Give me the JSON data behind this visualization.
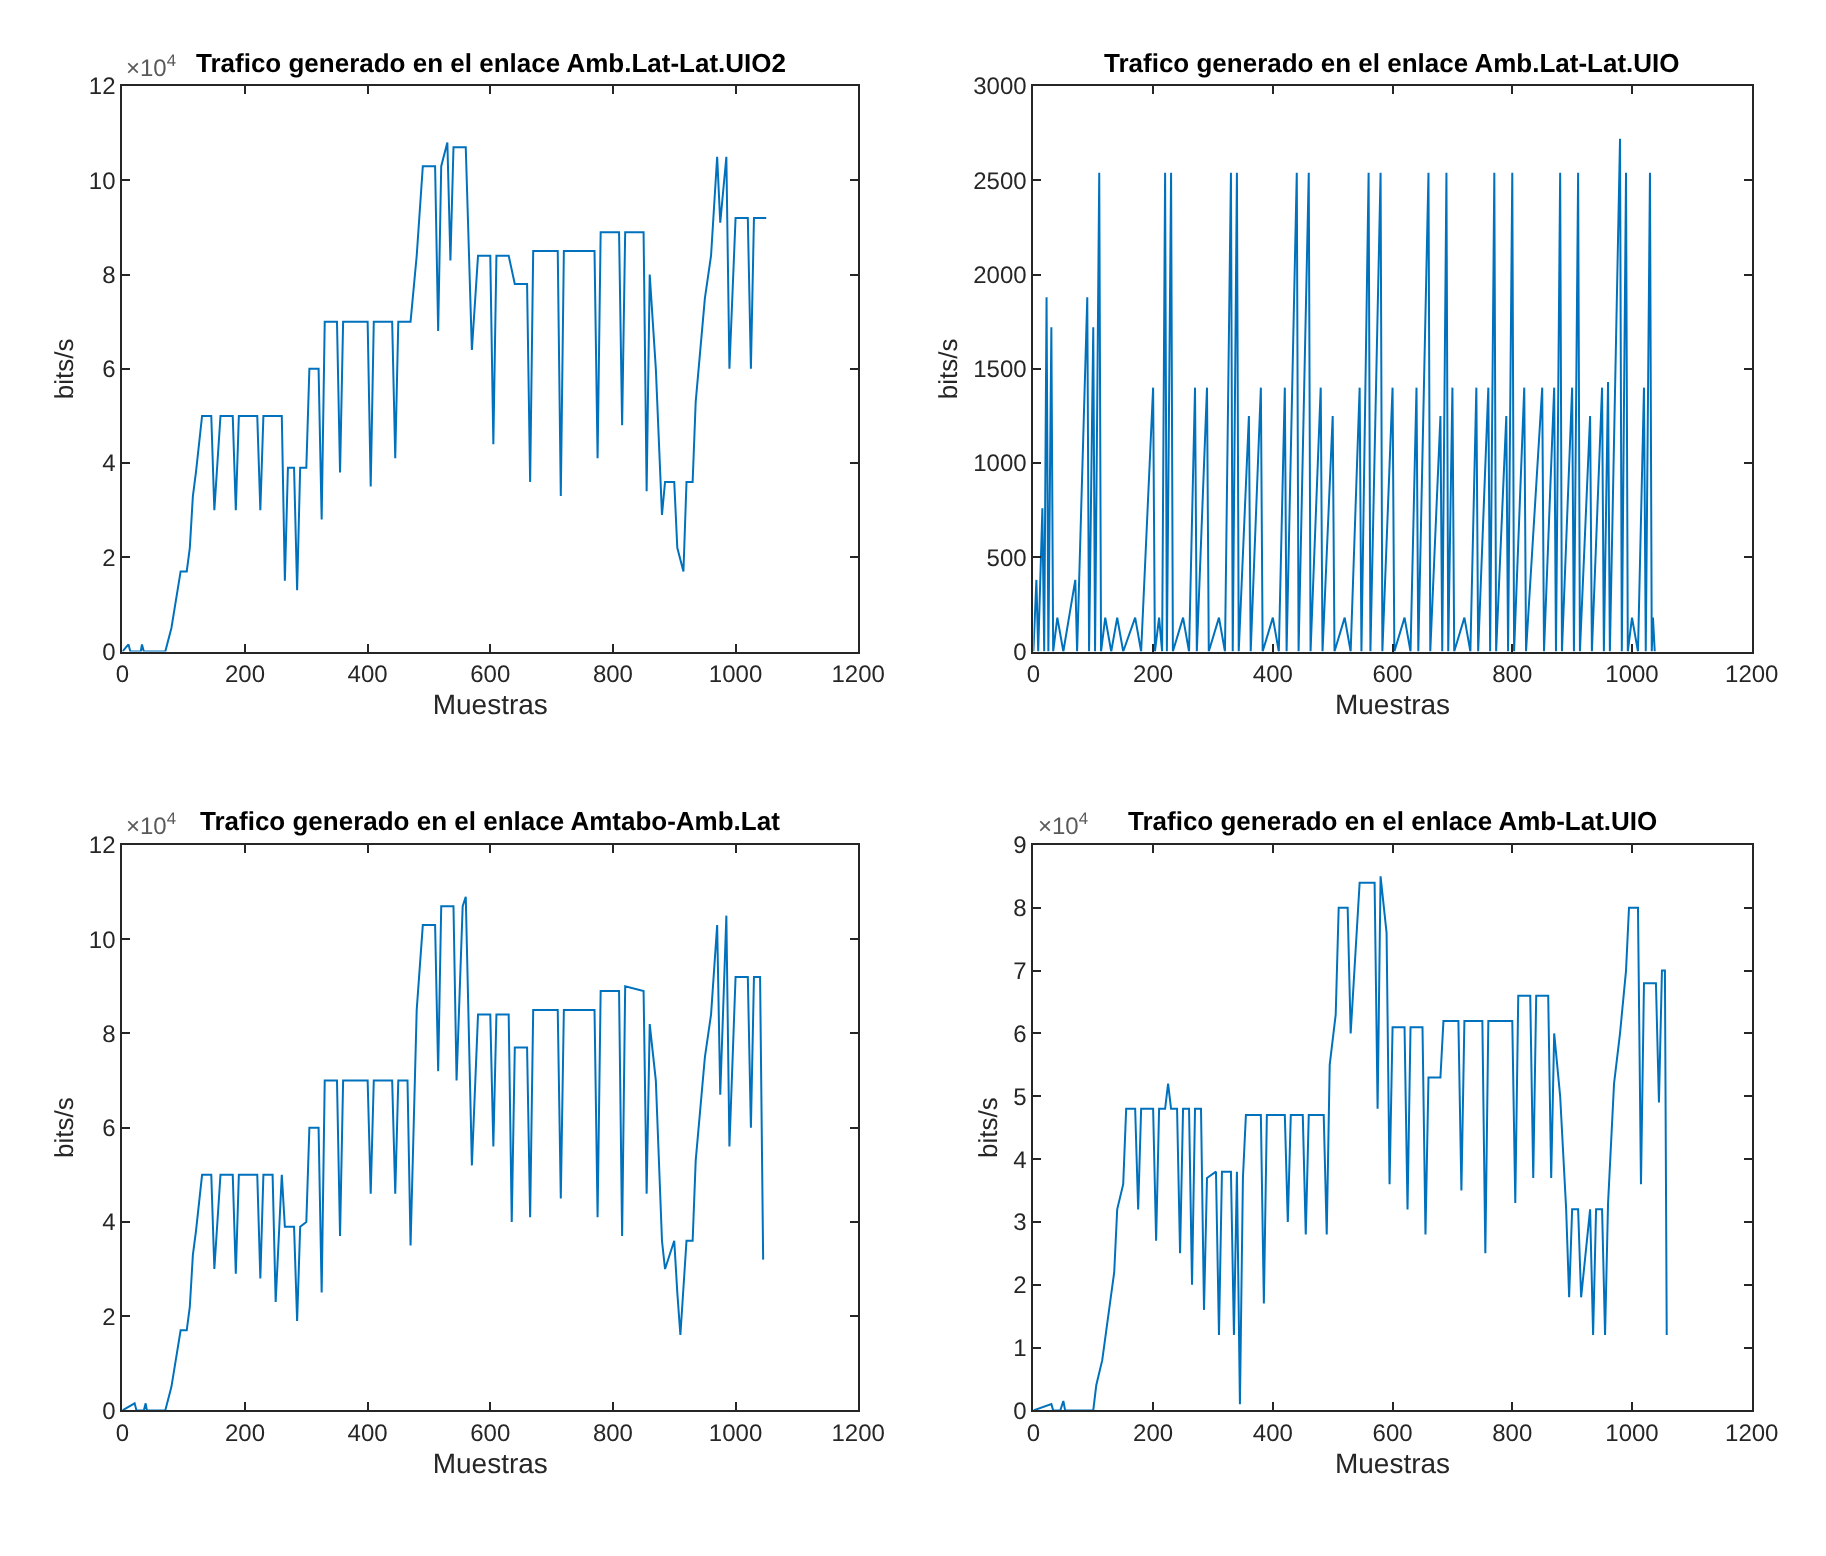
{
  "chart_data": [
    {
      "type": "line",
      "title": "Trafico generado en el enlace Amb.Lat-Lat.UIO2",
      "xlabel": "Muestras",
      "ylabel": "bits/s",
      "annotations": [
        "×10$^{4}$"
      ],
      "xlim": [
        0,
        1200
      ],
      "xticks": [
        0,
        200,
        400,
        600,
        800,
        1000,
        1200
      ],
      "ylim": [
        0,
        12
      ],
      "yticks": [
        0,
        2,
        4,
        6,
        8,
        10,
        12
      ],
      "series": [
        {
          "color": "#0072bd",
          "x": [
            0,
            10,
            13,
            30,
            32,
            35,
            70,
            80,
            95,
            105,
            110,
            115,
            120,
            130,
            145,
            150,
            160,
            180,
            185,
            190,
            220,
            225,
            230,
            260,
            265,
            270,
            280,
            285,
            290,
            300,
            305,
            320,
            325,
            330,
            350,
            355,
            360,
            400,
            405,
            410,
            440,
            445,
            450,
            470,
            480,
            490,
            510,
            515,
            520,
            530,
            535,
            540,
            560,
            570,
            580,
            600,
            605,
            610,
            630,
            640,
            660,
            665,
            670,
            710,
            715,
            720,
            770,
            775,
            780,
            810,
            815,
            820,
            850,
            855,
            860,
            870,
            880,
            885,
            900,
            905,
            915,
            920,
            930,
            935,
            950,
            960,
            970,
            975,
            985,
            990,
            1000,
            1020,
            1025,
            1030,
            1050
          ],
          "values": [
            0,
            0.15,
            0,
            0,
            0.15,
            0,
            0,
            0.5,
            1.7,
            1.7,
            2.2,
            3.3,
            3.8,
            5,
            5,
            3,
            5,
            5,
            3,
            5,
            5,
            3,
            5,
            5,
            1.5,
            3.9,
            3.9,
            1.3,
            3.9,
            3.9,
            6,
            6,
            2.8,
            7,
            7,
            3.8,
            7,
            7,
            3.5,
            7,
            7,
            4.1,
            7,
            7,
            8.4,
            10.3,
            10.3,
            6.8,
            10.3,
            10.8,
            8.3,
            10.7,
            10.7,
            6.4,
            8.4,
            8.4,
            4.4,
            8.4,
            8.4,
            7.8,
            7.8,
            3.6,
            8.5,
            8.5,
            3.3,
            8.5,
            8.5,
            4.1,
            8.9,
            8.9,
            4.8,
            8.9,
            8.9,
            3.4,
            8,
            6,
            2.9,
            3.6,
            3.6,
            2.2,
            1.7,
            3.6,
            3.6,
            5.3,
            7.5,
            8.4,
            10.5,
            9.1,
            10.5,
            6,
            9.2,
            9.2,
            6,
            9.2,
            9.2
          ]
        }
      ]
    },
    {
      "type": "line",
      "title": "Trafico generado en el enlace Amb.Lat-Lat.UIO",
      "xlabel": "Muestras",
      "ylabel": "bits/s",
      "xlim": [
        0,
        1200
      ],
      "xticks": [
        0,
        200,
        400,
        600,
        800,
        1000,
        1200
      ],
      "ylim": [
        0,
        3000
      ],
      "yticks": [
        0,
        500,
        1000,
        1500,
        2000,
        2500,
        3000
      ],
      "series": [
        {
          "color": "#0072bd",
          "x": [
            0,
            5,
            8,
            15,
            18,
            22,
            25,
            30,
            33,
            40,
            50,
            70,
            73,
            90,
            93,
            100,
            103,
            110,
            113,
            120,
            130,
            140,
            150,
            170,
            180,
            200,
            203,
            210,
            215,
            220,
            223,
            230,
            233,
            250,
            260,
            270,
            273,
            290,
            293,
            310,
            320,
            330,
            333,
            340,
            343,
            360,
            363,
            380,
            383,
            400,
            410,
            420,
            423,
            440,
            443,
            460,
            463,
            480,
            483,
            500,
            503,
            520,
            530,
            545,
            548,
            560,
            563,
            580,
            583,
            600,
            603,
            620,
            630,
            640,
            643,
            660,
            663,
            680,
            683,
            690,
            693,
            700,
            703,
            720,
            730,
            740,
            743,
            760,
            763,
            770,
            773,
            790,
            793,
            800,
            803,
            820,
            823,
            850,
            853,
            870,
            873,
            880,
            883,
            900,
            903,
            910,
            913,
            930,
            933,
            950,
            953,
            960,
            963,
            980,
            983,
            990,
            993,
            1000,
            1010,
            1020,
            1023,
            1030,
            1033,
            1035,
            1038
          ],
          "values": [
            0,
            380,
            0,
            760,
            0,
            1880,
            0,
            1720,
            0,
            180,
            0,
            380,
            0,
            1880,
            0,
            1720,
            0,
            2540,
            0,
            180,
            0,
            180,
            0,
            180,
            0,
            1400,
            0,
            180,
            0,
            2540,
            0,
            2540,
            0,
            180,
            0,
            1400,
            0,
            1400,
            0,
            180,
            0,
            2540,
            0,
            2540,
            0,
            1250,
            0,
            1400,
            0,
            180,
            0,
            1400,
            0,
            2540,
            0,
            2540,
            0,
            1400,
            0,
            1250,
            0,
            180,
            0,
            1400,
            0,
            2540,
            0,
            2540,
            0,
            1400,
            0,
            180,
            0,
            1400,
            0,
            2540,
            0,
            1250,
            0,
            2540,
            0,
            1400,
            0,
            180,
            0,
            1400,
            0,
            1400,
            0,
            2540,
            0,
            1250,
            0,
            2540,
            0,
            1400,
            0,
            1400,
            0,
            1400,
            0,
            2540,
            0,
            1400,
            0,
            2540,
            0,
            1250,
            0,
            1400,
            0,
            1430,
            0,
            2720,
            0,
            2540,
            0,
            180,
            0,
            1400,
            0,
            2540,
            0,
            180,
            0
          ]
        }
      ]
    },
    {
      "type": "line",
      "title": "Trafico generado en el enlace Amtabo-Amb.Lat",
      "xlabel": "Muestras",
      "ylabel": "bits/s",
      "annotations": [
        "×10$^{4}$"
      ],
      "xlim": [
        0,
        1200
      ],
      "xticks": [
        0,
        200,
        400,
        600,
        800,
        1000,
        1200
      ],
      "ylim": [
        0,
        12
      ],
      "yticks": [
        0,
        2,
        4,
        6,
        8,
        10,
        12
      ],
      "series": [
        {
          "color": "#0072bd",
          "x": [
            0,
            20,
            23,
            35,
            38,
            40,
            70,
            80,
            95,
            105,
            110,
            115,
            120,
            130,
            145,
            150,
            160,
            180,
            185,
            190,
            220,
            225,
            230,
            245,
            250,
            260,
            265,
            280,
            285,
            290,
            300,
            305,
            320,
            325,
            330,
            350,
            355,
            360,
            400,
            405,
            410,
            440,
            445,
            450,
            465,
            470,
            480,
            490,
            510,
            515,
            520,
            540,
            545,
            555,
            560,
            570,
            580,
            600,
            605,
            610,
            630,
            635,
            640,
            660,
            665,
            670,
            710,
            715,
            720,
            770,
            775,
            780,
            810,
            815,
            820,
            850,
            855,
            860,
            870,
            880,
            885,
            900,
            905,
            910,
            920,
            930,
            935,
            950,
            960,
            970,
            975,
            985,
            990,
            1000,
            1020,
            1025,
            1030,
            1040,
            1045
          ],
          "values": [
            0,
            0.15,
            0,
            0,
            0.15,
            0,
            0,
            0.5,
            1.7,
            1.7,
            2.2,
            3.3,
            3.8,
            5,
            5,
            3,
            5,
            5,
            2.9,
            5,
            5,
            2.8,
            5,
            5,
            2.3,
            5,
            3.9,
            3.9,
            1.9,
            3.9,
            4,
            6,
            6,
            2.5,
            7,
            7,
            3.7,
            7,
            7,
            4.6,
            7,
            7,
            4.6,
            7,
            7,
            3.5,
            8.5,
            10.3,
            10.3,
            7.2,
            10.7,
            10.7,
            7,
            10.7,
            10.9,
            5.2,
            8.4,
            8.4,
            5.6,
            8.4,
            8.4,
            4,
            7.7,
            7.7,
            4.1,
            8.5,
            8.5,
            4.5,
            8.5,
            8.5,
            4.1,
            8.9,
            8.9,
            3.7,
            9,
            8.9,
            4.6,
            8.2,
            7,
            3.6,
            3,
            3.6,
            2.5,
            1.6,
            3.6,
            3.6,
            5.3,
            7.5,
            8.4,
            10.3,
            6.7,
            10.5,
            5.6,
            9.2,
            9.2,
            6,
            9.2,
            9.2,
            3.2
          ]
        }
      ]
    },
    {
      "type": "line",
      "title": "Trafico generado en el enlace Amb-Lat.UIO",
      "xlabel": "Muestras",
      "ylabel": "bits/s",
      "annotations": [
        "×10$^{4}$"
      ],
      "xlim": [
        0,
        1200
      ],
      "xticks": [
        0,
        200,
        400,
        600,
        800,
        1000,
        1200
      ],
      "ylim": [
        0,
        9
      ],
      "yticks": [
        0,
        1,
        2,
        3,
        4,
        5,
        6,
        7,
        8,
        9
      ],
      "series": [
        {
          "color": "#0072bd",
          "x": [
            0,
            30,
            33,
            45,
            50,
            53,
            100,
            105,
            115,
            125,
            135,
            140,
            150,
            155,
            170,
            175,
            180,
            200,
            205,
            210,
            220,
            225,
            230,
            240,
            245,
            250,
            260,
            265,
            270,
            280,
            285,
            290,
            305,
            310,
            315,
            330,
            335,
            340,
            345,
            350,
            355,
            380,
            385,
            390,
            420,
            425,
            430,
            450,
            455,
            460,
            485,
            490,
            495,
            505,
            510,
            525,
            530,
            545,
            570,
            575,
            580,
            590,
            595,
            600,
            620,
            625,
            630,
            650,
            655,
            660,
            680,
            685,
            710,
            715,
            720,
            750,
            755,
            760,
            800,
            805,
            810,
            830,
            835,
            840,
            860,
            865,
            870,
            880,
            890,
            895,
            900,
            910,
            915,
            930,
            935,
            940,
            950,
            955,
            960,
            970,
            980,
            990,
            995,
            1010,
            1015,
            1020,
            1040,
            1045,
            1050,
            1055,
            1058
          ],
          "values": [
            0,
            0.1,
            0,
            0,
            0.15,
            0,
            0,
            0.4,
            0.8,
            1.5,
            2.2,
            3.2,
            3.6,
            4.8,
            4.8,
            3.2,
            4.8,
            4.8,
            2.7,
            4.8,
            4.8,
            5.2,
            4.8,
            4.8,
            2.5,
            4.8,
            4.8,
            2,
            4.8,
            4.8,
            1.6,
            3.7,
            3.8,
            1.2,
            3.8,
            3.8,
            1.2,
            3.8,
            0.1,
            3.7,
            4.7,
            4.7,
            1.7,
            4.7,
            4.7,
            3,
            4.7,
            4.7,
            2.8,
            4.7,
            4.7,
            2.8,
            5.5,
            6.3,
            8,
            8,
            6,
            8.4,
            8.4,
            4.8,
            8.5,
            7.6,
            3.6,
            6.1,
            6.1,
            3.2,
            6.1,
            6.1,
            2.8,
            5.3,
            5.3,
            6.2,
            6.2,
            3.5,
            6.2,
            6.2,
            2.5,
            6.2,
            6.2,
            3.3,
            6.6,
            6.6,
            3.7,
            6.6,
            6.6,
            3.7,
            6,
            5,
            3.2,
            1.8,
            3.2,
            3.2,
            1.8,
            3.2,
            1.2,
            3.2,
            3.2,
            1.2,
            3.3,
            5.2,
            6,
            7,
            8,
            8,
            3.6,
            6.8,
            6.8,
            4.9,
            7,
            7,
            1.2
          ]
        }
      ]
    }
  ]
}
